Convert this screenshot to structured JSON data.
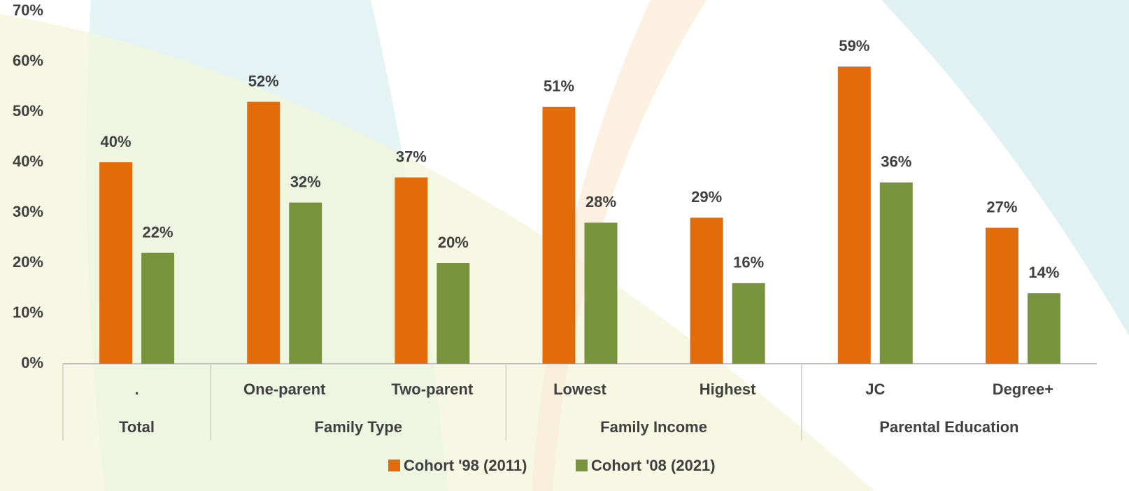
{
  "chart_data": {
    "type": "bar",
    "groups": [
      {
        "name": "Total",
        "categories": [
          "."
        ]
      },
      {
        "name": "Family Type",
        "categories": [
          "One-parent",
          "Two-parent"
        ]
      },
      {
        "name": "Family Income",
        "categories": [
          "Lowest",
          "Highest"
        ]
      },
      {
        "name": "Parental Education",
        "categories": [
          "JC",
          "Degree+"
        ]
      }
    ],
    "series": [
      {
        "name": "Cohort '98 (2011)",
        "color": "#e36c0a",
        "values": [
          40,
          52,
          37,
          51,
          29,
          59,
          27
        ],
        "value_labels": [
          "40%",
          "52%",
          "37%",
          "51%",
          "29%",
          "59%",
          "27%"
        ]
      },
      {
        "name": "Cohort '08 (2021)",
        "color": "#77933c",
        "values": [
          22,
          32,
          20,
          28,
          16,
          36,
          14
        ],
        "value_labels": [
          "22%",
          "32%",
          "20%",
          "28%",
          "16%",
          "36%",
          "14%"
        ]
      }
    ],
    "ylim": [
      0,
      70
    ],
    "yticks": [
      {
        "value": 0,
        "label": "0%"
      },
      {
        "value": 10,
        "label": "10%"
      },
      {
        "value": 20,
        "label": "20%"
      },
      {
        "value": 30,
        "label": "30%"
      },
      {
        "value": 40,
        "label": "40%"
      },
      {
        "value": 50,
        "label": "50%"
      },
      {
        "value": 60,
        "label": "60%"
      },
      {
        "value": 70,
        "label": "70%"
      }
    ],
    "legend": "bottom"
  }
}
